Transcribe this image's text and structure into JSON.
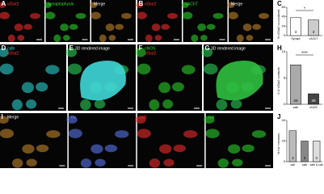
{
  "panels": [
    {
      "letter": "A",
      "subpanels": [
        [
          {
            "text": "vGlut2",
            "color": "#ff3030"
          }
        ],
        [
          {
            "text": "synaptophysin",
            "color": "#30e030"
          }
        ],
        [
          {
            "text": "Merge",
            "color": "#ffffff"
          }
        ]
      ]
    },
    {
      "letter": "B",
      "subpanels": [
        [
          {
            "text": "vGlut2",
            "color": "#ff3030"
          }
        ],
        [
          {
            "text": "vAChT",
            "color": "#30e030"
          }
        ],
        [
          {
            "text": "Merge",
            "color": "#ffffff"
          }
        ]
      ]
    },
    {
      "letter": "D",
      "subpanels": [
        [
          {
            "text": "calb",
            "color": "#30e0e0"
          },
          {
            "text": "vGlut2",
            "color": "#ff3030"
          }
        ]
      ]
    },
    {
      "letter": "E",
      "subpanels": [
        [
          {
            "text": "3D rendered image",
            "color": "#ffffff"
          }
        ]
      ]
    },
    {
      "letter": "F",
      "subpanels": [
        [
          {
            "text": "nNOS",
            "color": "#30e030"
          },
          {
            "text": "vGlut2",
            "color": "#ff3030"
          }
        ]
      ]
    },
    {
      "letter": "G",
      "subpanels": [
        [
          {
            "text": "3D rendered image",
            "color": "#ffffff"
          }
        ]
      ]
    },
    {
      "letter": "I",
      "subpanels": [
        [
          {
            "text": "Merge",
            "color": "#ffffff"
          }
        ],
        [
          {
            "text": "Hu",
            "color": "#6080ff"
          }
        ],
        [
          {
            "text": "calb",
            "color": "#ff3030"
          }
        ],
        [
          {
            "text": "calr",
            "color": "#30e030"
          }
        ]
      ]
    }
  ],
  "chart_data": [
    {
      "letter": "C",
      "type": "bar",
      "ylabel": "% vGlut2 co-localized",
      "categories": [
        "Synapt",
        "vAChT"
      ],
      "values": [
        38,
        33
      ],
      "colors": [
        "#ffffff",
        "#cccccc"
      ],
      "n_labels": [
        "3",
        "3"
      ],
      "ylim": [
        0,
        60
      ],
      "yticks": [
        0,
        20,
        40,
        60
      ],
      "significance": "*"
    },
    {
      "letter": "H",
      "type": "bar",
      "ylabel": "# of vGlut2 contacts",
      "categories": [
        "calb",
        "nNOS"
      ],
      "values": [
        7.5,
        2
      ],
      "colors": [
        "#aaaaaa",
        "#444444"
      ],
      "n_labels": [
        "29",
        "29"
      ],
      "ylim": [
        0,
        10
      ],
      "yticks": [
        0,
        5,
        10
      ],
      "significance": "****"
    },
    {
      "letter": "J",
      "type": "bar",
      "ylabel": "% Hu+ neurons",
      "categories": [
        "calr",
        "calb",
        "calb & calr"
      ],
      "values": [
        30,
        20,
        20
      ],
      "colors": [
        "#bbbbbb",
        "#888888",
        "#dddddd"
      ],
      "n_labels": [
        "3",
        "3",
        "3"
      ],
      "ylim": [
        0,
        40
      ],
      "yticks": [
        0,
        20,
        40
      ]
    }
  ]
}
